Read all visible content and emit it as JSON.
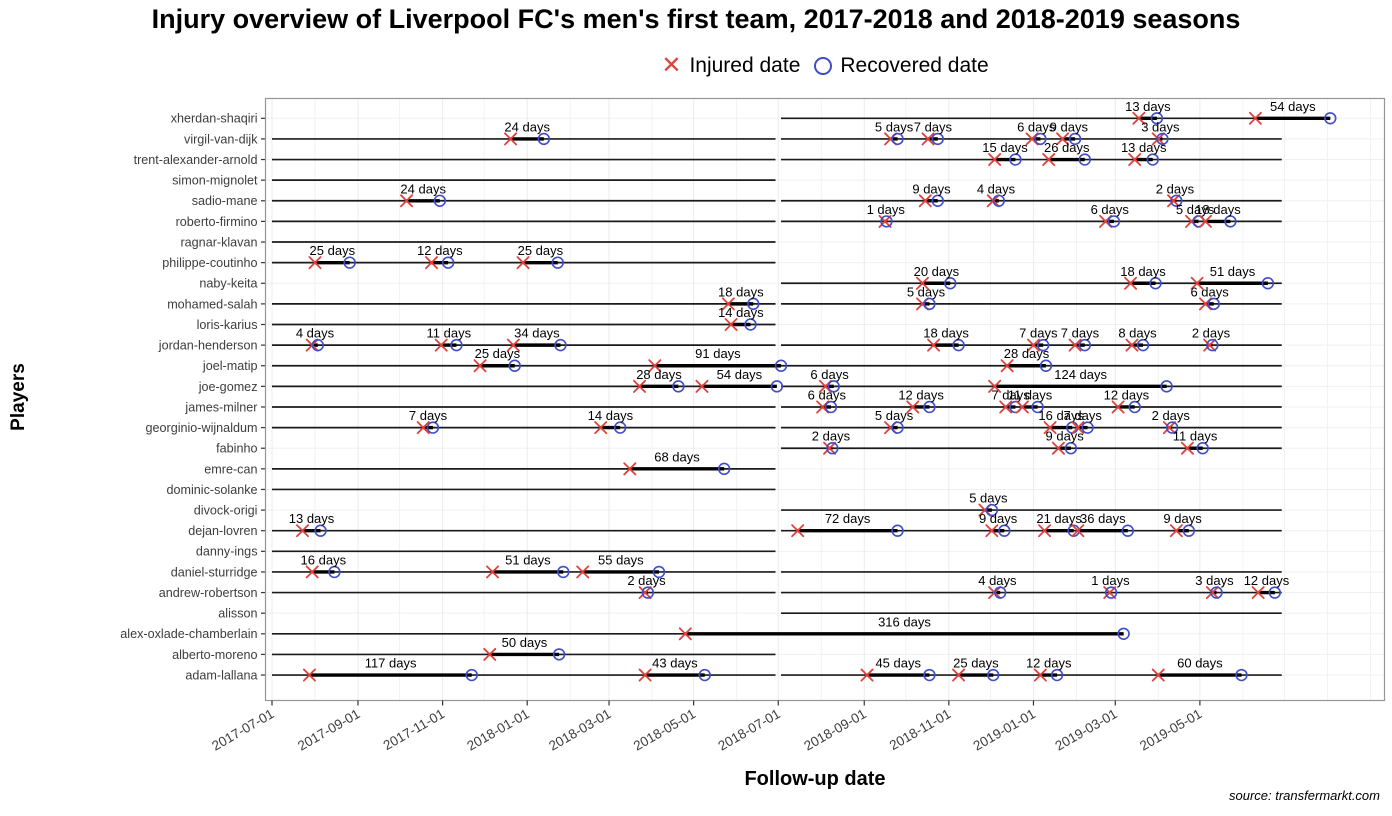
{
  "title": "Injury overview of Liverpool FC's men's first team, 2017-2018 and 2018-2019 seasons",
  "legend": {
    "injured_label": "Injured date",
    "recovered_label": "Recovered date"
  },
  "axes": {
    "x_label": "Follow-up date",
    "y_label": "Players",
    "x_ticks": [
      "2017-07-01",
      "2017-09-01",
      "2017-11-01",
      "2018-01-01",
      "2018-03-01",
      "2018-05-01",
      "2018-07-01",
      "2018-09-01",
      "2018-11-01",
      "2019-01-01",
      "2019-03-01",
      "2019-05-01"
    ]
  },
  "source": "source: transfermarkt.com",
  "colors": {
    "injured": "#e2413b",
    "recovered": "#3f4ccb",
    "line": "#1a1a1a",
    "grid": "#ebebeb",
    "hgrid": "#f0f0f0",
    "panel_border": "#969696",
    "axis_text": "#3d3d3d"
  },
  "chart_data": {
    "type": "timeline",
    "x_range": [
      "2017-07-01",
      "2019-09-10"
    ],
    "season1": [
      "2017-07-01",
      "2018-06-29"
    ],
    "season2": [
      "2018-07-03",
      "2019-06-29"
    ],
    "players": [
      {
        "name": "xherdan-shaqiri",
        "lines": [
          [
            "2018-07-03",
            "2019-08-03"
          ]
        ],
        "injuries": [
          {
            "start": "2019-03-18",
            "days": 13,
            "label": "13 days"
          },
          {
            "start": "2019-06-10",
            "days": 54,
            "label": "54 days"
          }
        ]
      },
      {
        "name": "virgil-van-dijk",
        "lines": [
          [
            "2017-07-01",
            "2018-06-29"
          ],
          [
            "2018-07-03",
            "2019-06-29"
          ]
        ],
        "injuries": [
          {
            "start": "2017-12-20",
            "days": 24,
            "label": "24 days"
          },
          {
            "start": "2018-09-20",
            "days": 5,
            "label": "5 days"
          },
          {
            "start": "2018-10-17",
            "days": 7,
            "label": "7 days"
          },
          {
            "start": "2018-12-31",
            "days": 6,
            "label": "6 days"
          },
          {
            "start": "2019-01-22",
            "days": 9,
            "label": "9 days"
          },
          {
            "start": "2019-04-01",
            "days": 3,
            "label": "3 days"
          }
        ]
      },
      {
        "name": "trent-alexander-arnold",
        "lines": [
          [
            "2017-07-01",
            "2018-06-29"
          ],
          [
            "2018-07-03",
            "2019-06-29"
          ]
        ],
        "injuries": [
          {
            "start": "2018-12-04",
            "days": 15,
            "label": "15 days"
          },
          {
            "start": "2019-01-12",
            "days": 26,
            "label": "26 days"
          },
          {
            "start": "2019-03-15",
            "days": 13,
            "label": "13 days"
          }
        ]
      },
      {
        "name": "simon-mignolet",
        "lines": [
          [
            "2017-07-01",
            "2018-06-29"
          ]
        ],
        "injuries": []
      },
      {
        "name": "sadio-mane",
        "lines": [
          [
            "2017-07-01",
            "2018-06-29"
          ],
          [
            "2018-07-03",
            "2019-06-29"
          ]
        ],
        "injuries": [
          {
            "start": "2017-10-06",
            "days": 24,
            "label": "24 days"
          },
          {
            "start": "2018-10-15",
            "days": 9,
            "label": "9 days"
          },
          {
            "start": "2018-12-03",
            "days": 4,
            "label": "4 days"
          },
          {
            "start": "2019-04-12",
            "days": 2,
            "label": "2 days"
          }
        ]
      },
      {
        "name": "roberto-firmino",
        "lines": [
          [
            "2017-07-01",
            "2018-06-29"
          ],
          [
            "2018-07-03",
            "2019-06-29"
          ]
        ],
        "injuries": [
          {
            "start": "2018-09-16",
            "days": 1,
            "label": "1 days"
          },
          {
            "start": "2019-02-22",
            "days": 6,
            "label": "6 days"
          },
          {
            "start": "2019-04-25",
            "days": 5,
            "label": "5 days"
          },
          {
            "start": "2019-05-05",
            "days": 18,
            "label": "18 days"
          }
        ]
      },
      {
        "name": "ragnar-klavan",
        "lines": [
          [
            "2017-07-01",
            "2018-06-29"
          ]
        ],
        "injuries": []
      },
      {
        "name": "philippe-coutinho",
        "lines": [
          [
            "2017-07-01",
            "2018-06-29"
          ]
        ],
        "injuries": [
          {
            "start": "2017-08-01",
            "days": 25,
            "label": "25 days"
          },
          {
            "start": "2017-10-24",
            "days": 12,
            "label": "12 days"
          },
          {
            "start": "2017-12-29",
            "days": 25,
            "label": "25 days"
          }
        ]
      },
      {
        "name": "naby-keita",
        "lines": [
          [
            "2018-07-03",
            "2019-06-29"
          ]
        ],
        "injuries": [
          {
            "start": "2018-10-13",
            "days": 20,
            "label": "20 days"
          },
          {
            "start": "2019-03-12",
            "days": 18,
            "label": "18 days"
          },
          {
            "start": "2019-04-29",
            "days": 51,
            "label": "51 days"
          }
        ]
      },
      {
        "name": "mohamed-salah",
        "lines": [
          [
            "2017-07-01",
            "2018-06-29"
          ],
          [
            "2018-07-03",
            "2019-06-29"
          ]
        ],
        "injuries": [
          {
            "start": "2018-05-26",
            "days": 18,
            "label": "18 days"
          },
          {
            "start": "2018-10-13",
            "days": 5,
            "label": "5 days"
          },
          {
            "start": "2019-05-05",
            "days": 6,
            "label": "6 days"
          }
        ]
      },
      {
        "name": "loris-karius",
        "lines": [
          [
            "2017-07-01",
            "2018-06-29"
          ]
        ],
        "injuries": [
          {
            "start": "2018-05-28",
            "days": 14,
            "label": "14 days"
          }
        ]
      },
      {
        "name": "jordan-henderson",
        "lines": [
          [
            "2017-07-01",
            "2018-06-29"
          ],
          [
            "2018-07-03",
            "2019-06-29"
          ]
        ],
        "injuries": [
          {
            "start": "2017-07-30",
            "days": 4,
            "label": "4 days"
          },
          {
            "start": "2017-10-31",
            "days": 11,
            "label": "11 days"
          },
          {
            "start": "2017-12-22",
            "days": 34,
            "label": "34 days"
          },
          {
            "start": "2018-10-21",
            "days": 18,
            "label": "18 days"
          },
          {
            "start": "2019-01-01",
            "days": 7,
            "label": "7 days"
          },
          {
            "start": "2019-01-31",
            "days": 7,
            "label": "7 days"
          },
          {
            "start": "2019-03-13",
            "days": 8,
            "label": "8 days"
          },
          {
            "start": "2019-05-08",
            "days": 2,
            "label": "2 days"
          }
        ]
      },
      {
        "name": "joel-matip",
        "lines": [
          [
            "2017-07-01",
            "2018-06-29"
          ],
          [
            "2018-07-03",
            "2019-06-29"
          ]
        ],
        "injuries": [
          {
            "start": "2017-11-28",
            "days": 25,
            "label": "25 days"
          },
          {
            "start": "2018-04-03",
            "days": 91,
            "label": "91 days"
          },
          {
            "start": "2018-12-13",
            "days": 28,
            "label": "28 days"
          }
        ]
      },
      {
        "name": "joe-gomez",
        "lines": [
          [
            "2017-07-01",
            "2018-06-29"
          ],
          [
            "2018-07-03",
            "2019-06-29"
          ]
        ],
        "injuries": [
          {
            "start": "2018-03-23",
            "days": 28,
            "label": "28 days"
          },
          {
            "start": "2018-05-07",
            "days": 54,
            "label": "54 days"
          },
          {
            "start": "2018-08-04",
            "days": 6,
            "label": "6 days"
          },
          {
            "start": "2018-12-04",
            "days": 124,
            "label": "124 days"
          }
        ]
      },
      {
        "name": "james-milner",
        "lines": [
          [
            "2017-07-01",
            "2018-06-29"
          ],
          [
            "2018-07-03",
            "2019-06-29"
          ]
        ],
        "injuries": [
          {
            "start": "2018-08-02",
            "days": 6,
            "label": "6 days"
          },
          {
            "start": "2018-10-06",
            "days": 12,
            "label": "12 days"
          },
          {
            "start": "2018-12-12",
            "days": 7,
            "label": "7 days"
          },
          {
            "start": "2018-12-24",
            "days": 11,
            "label": "11 days"
          },
          {
            "start": "2019-03-03",
            "days": 12,
            "label": "12 days"
          }
        ]
      },
      {
        "name": "georginio-wijnaldum",
        "lines": [
          [
            "2017-07-01",
            "2018-06-29"
          ],
          [
            "2018-07-03",
            "2019-06-29"
          ]
        ],
        "injuries": [
          {
            "start": "2017-10-18",
            "days": 7,
            "label": "7 days"
          },
          {
            "start": "2018-02-23",
            "days": 14,
            "label": "14 days"
          },
          {
            "start": "2018-09-20",
            "days": 5,
            "label": "5 days"
          },
          {
            "start": "2019-01-13",
            "days": 16,
            "label": "16 days"
          },
          {
            "start": "2019-02-02",
            "days": 7,
            "label": "7 days"
          },
          {
            "start": "2019-04-09",
            "days": 2,
            "label": "2 days"
          }
        ]
      },
      {
        "name": "fabinho",
        "lines": [
          [
            "2018-07-03",
            "2019-06-29"
          ]
        ],
        "injuries": [
          {
            "start": "2018-08-07",
            "days": 2,
            "label": "2 days"
          },
          {
            "start": "2019-01-19",
            "days": 9,
            "label": "9 days"
          },
          {
            "start": "2019-04-22",
            "days": 11,
            "label": "11 days"
          }
        ]
      },
      {
        "name": "emre-can",
        "lines": [
          [
            "2017-07-01",
            "2018-06-29"
          ]
        ],
        "injuries": [
          {
            "start": "2018-03-16",
            "days": 68,
            "label": "68 days"
          }
        ]
      },
      {
        "name": "dominic-solanke",
        "lines": [
          [
            "2017-07-01",
            "2018-06-29"
          ]
        ],
        "injuries": []
      },
      {
        "name": "divock-origi",
        "lines": [
          [
            "2018-07-03",
            "2019-06-29"
          ]
        ],
        "injuries": [
          {
            "start": "2018-11-27",
            "days": 5,
            "label": "5 days"
          }
        ]
      },
      {
        "name": "dejan-lovren",
        "lines": [
          [
            "2017-07-01",
            "2018-06-29"
          ],
          [
            "2018-07-03",
            "2019-06-29"
          ]
        ],
        "injuries": [
          {
            "start": "2017-07-23",
            "days": 13,
            "label": "13 days"
          },
          {
            "start": "2018-07-15",
            "days": 72,
            "label": "72 days"
          },
          {
            "start": "2018-12-02",
            "days": 9,
            "label": "9 days"
          },
          {
            "start": "2019-01-09",
            "days": 21,
            "label": "21 days"
          },
          {
            "start": "2019-02-02",
            "days": 36,
            "label": "36 days"
          },
          {
            "start": "2019-04-14",
            "days": 9,
            "label": "9 days"
          }
        ]
      },
      {
        "name": "danny-ings",
        "lines": [
          [
            "2017-07-01",
            "2018-06-29"
          ]
        ],
        "injuries": []
      },
      {
        "name": "daniel-sturridge",
        "lines": [
          [
            "2017-07-01",
            "2018-06-29"
          ],
          [
            "2018-07-03",
            "2019-06-29"
          ]
        ],
        "injuries": [
          {
            "start": "2017-07-30",
            "days": 16,
            "label": "16 days"
          },
          {
            "start": "2017-12-07",
            "days": 51,
            "label": "51 days"
          },
          {
            "start": "2018-02-10",
            "days": 55,
            "label": "55 days"
          }
        ]
      },
      {
        "name": "andrew-robertson",
        "lines": [
          [
            "2017-07-01",
            "2018-06-29"
          ],
          [
            "2018-07-03",
            "2019-06-29"
          ]
        ],
        "injuries": [
          {
            "start": "2018-03-27",
            "days": 2,
            "label": "2 days"
          },
          {
            "start": "2018-12-04",
            "days": 4,
            "label": "4 days"
          },
          {
            "start": "2019-02-25",
            "days": 1,
            "label": "1 days"
          },
          {
            "start": "2019-05-10",
            "days": 3,
            "label": "3 days"
          },
          {
            "start": "2019-06-12",
            "days": 12,
            "label": "12 days"
          }
        ]
      },
      {
        "name": "alisson",
        "lines": [
          [
            "2018-07-03",
            "2019-06-29"
          ]
        ],
        "injuries": []
      },
      {
        "name": "alex-oxlade-chamberlain",
        "lines": [
          [
            "2017-07-01",
            "2018-06-29"
          ],
          [
            "2018-07-03",
            "2019-03-07"
          ]
        ],
        "injuries": [
          {
            "start": "2018-04-25",
            "days": 316,
            "label": "316 days"
          }
        ]
      },
      {
        "name": "alberto-moreno",
        "lines": [
          [
            "2017-07-01",
            "2018-06-29"
          ]
        ],
        "injuries": [
          {
            "start": "2017-12-05",
            "days": 50,
            "label": "50 days"
          }
        ]
      },
      {
        "name": "adam-lallana",
        "lines": [
          [
            "2017-07-01",
            "2018-06-29"
          ],
          [
            "2018-07-03",
            "2019-06-29"
          ]
        ],
        "injuries": [
          {
            "start": "2017-07-28",
            "days": 117,
            "label": "117 days"
          },
          {
            "start": "2018-03-27",
            "days": 43,
            "label": "43 days"
          },
          {
            "start": "2018-09-03",
            "days": 45,
            "label": "45 days"
          },
          {
            "start": "2018-11-08",
            "days": 25,
            "label": "25 days"
          },
          {
            "start": "2019-01-06",
            "days": 12,
            "label": "12 days"
          },
          {
            "start": "2019-04-01",
            "days": 60,
            "label": "60 days"
          }
        ]
      }
    ]
  }
}
